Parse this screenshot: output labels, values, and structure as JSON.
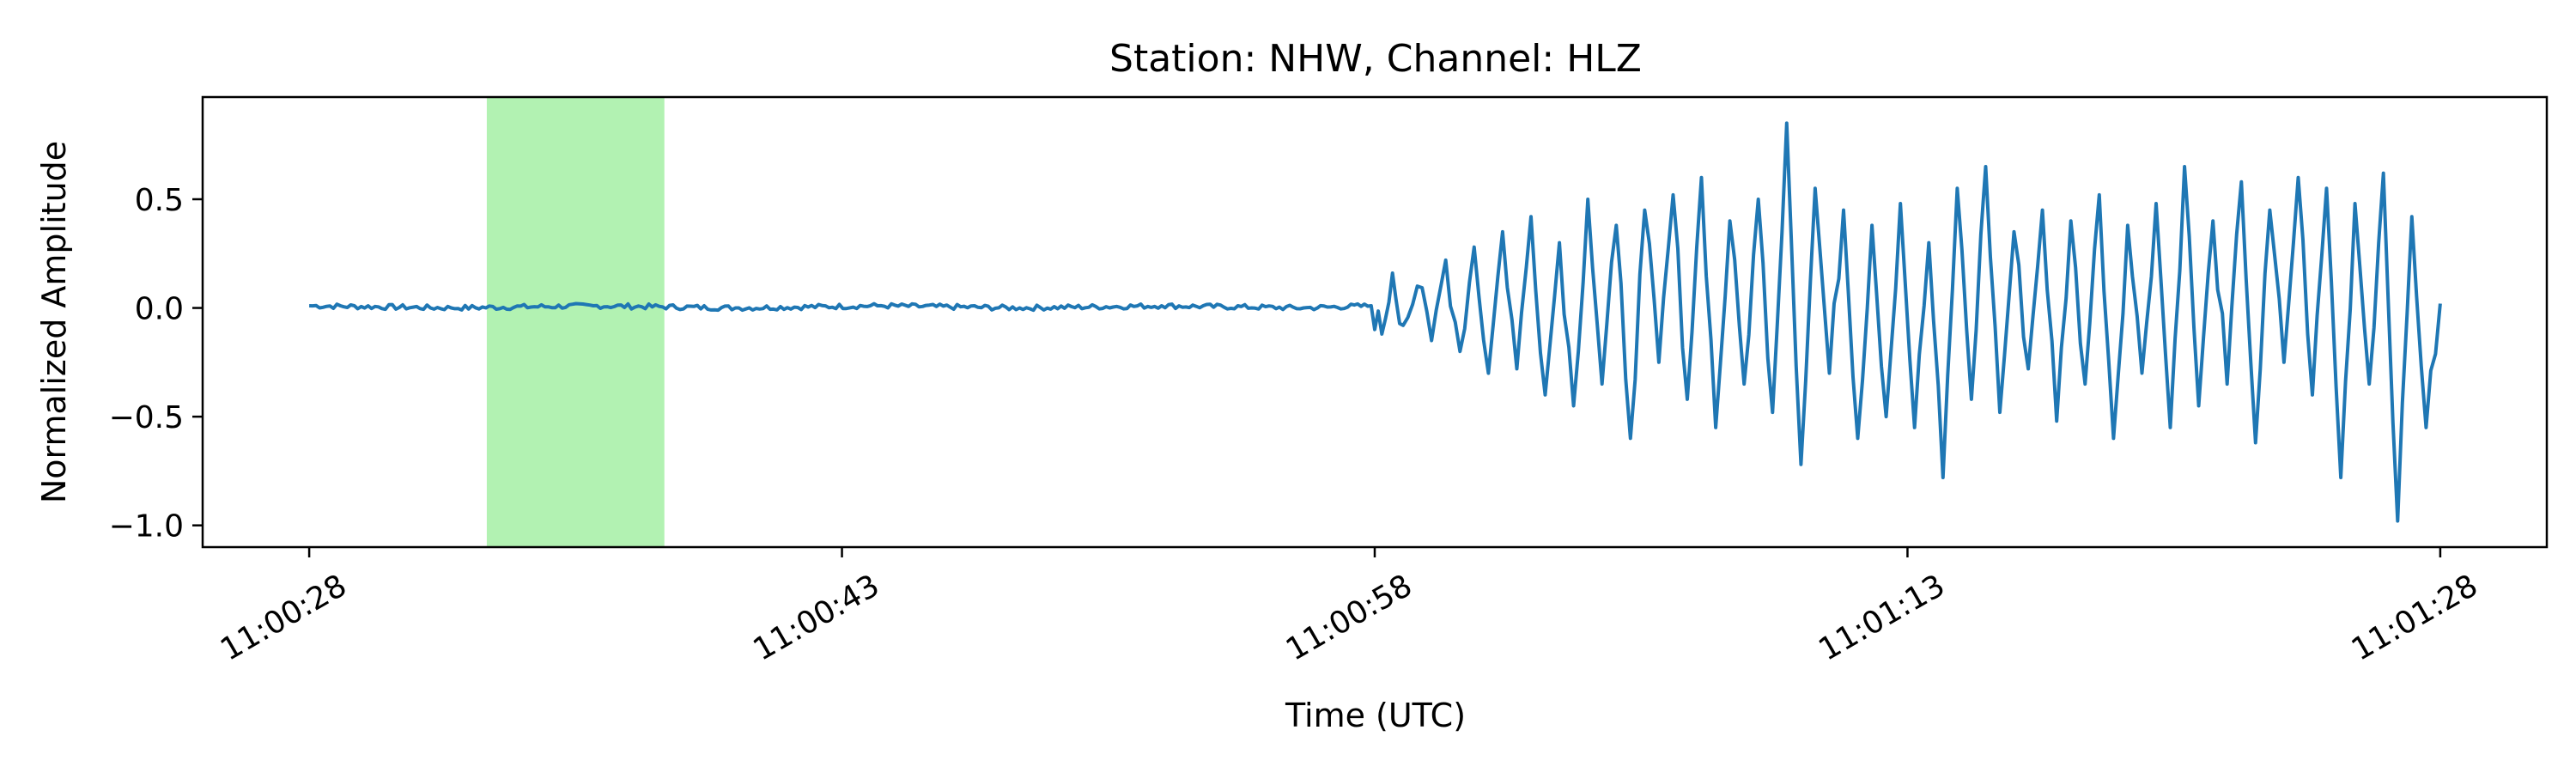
{
  "chart_data": {
    "type": "line",
    "title": "Station: NHW, Channel: HLZ",
    "xlabel": "Time (UTC)",
    "ylabel": "Normalized Amplitude",
    "xlim": [
      "11:00:25",
      "11:01:31"
    ],
    "ylim": [
      -1.1,
      0.97
    ],
    "grid": false,
    "x_ticks": [
      "11:00:28",
      "11:00:43",
      "11:00:58",
      "11:01:13",
      "11:01:28"
    ],
    "y_ticks": [
      {
        "value": 0.5,
        "label": "0.5"
      },
      {
        "value": 0.0,
        "label": "0.0"
      },
      {
        "value": -0.5,
        "label": "−0.5"
      },
      {
        "value": -1.0,
        "label": "−1.0"
      }
    ],
    "highlight_window": {
      "start": "11:00:33",
      "end": "11:00:38",
      "color": "#b2f2b2"
    },
    "series": [
      {
        "color": "#1f77b4",
        "x": [
          "11:00:28",
          "11:00:32",
          "11:00:36",
          "11:00:40",
          "11:00:44",
          "11:00:48",
          "11:00:52",
          "11:00:56",
          "11:00:57.9",
          "11:00:58.2",
          "11:00:58.5",
          "11:00:58.8",
          "11:00:59.2",
          "11:00:59.6",
          "11:01:00",
          "11:01:00.4",
          "11:01:00.8",
          "11:01:01.2",
          "11:01:01.6",
          "11:01:02",
          "11:01:02.4",
          "11:01:02.8",
          "11:01:03.2",
          "11:01:03.6",
          "11:01:04",
          "11:01:04.4",
          "11:01:04.8",
          "11:01:05.2",
          "11:01:05.6",
          "11:01:06",
          "11:01:06.4",
          "11:01:06.8",
          "11:01:07.2",
          "11:01:07.6",
          "11:01:08",
          "11:01:08.4",
          "11:01:08.8",
          "11:01:09.2",
          "11:01:09.6",
          "11:01:10",
          "11:01:10.4",
          "11:01:10.8",
          "11:01:11.2",
          "11:01:11.6",
          "11:01:12",
          "11:01:12.4",
          "11:01:12.8",
          "11:01:13.2",
          "11:01:13.6",
          "11:01:14",
          "11:01:14.4",
          "11:01:14.8",
          "11:01:15.2",
          "11:01:15.6",
          "11:01:16",
          "11:01:16.4",
          "11:01:16.8",
          "11:01:17.2",
          "11:01:17.6",
          "11:01:18",
          "11:01:18.4",
          "11:01:18.8",
          "11:01:19.2",
          "11:01:19.6",
          "11:01:20",
          "11:01:20.4",
          "11:01:20.8",
          "11:01:21.2",
          "11:01:21.6",
          "11:01:22",
          "11:01:22.4",
          "11:01:22.8",
          "11:01:23.2",
          "11:01:23.6",
          "11:01:24",
          "11:01:24.4",
          "11:01:24.8",
          "11:01:25.2",
          "11:01:25.6",
          "11:01:26",
          "11:01:26.4",
          "11:01:26.8",
          "11:01:27.2",
          "11:01:27.6",
          "11:01:28"
        ],
        "y": [
          0.01,
          0.0,
          0.01,
          0.0,
          0.01,
          0.0,
          0.01,
          0.0,
          0.01,
          -0.12,
          0.16,
          -0.08,
          0.1,
          -0.15,
          0.22,
          -0.2,
          0.28,
          -0.3,
          0.35,
          -0.28,
          0.42,
          -0.4,
          0.3,
          -0.45,
          0.5,
          -0.35,
          0.38,
          -0.6,
          0.45,
          -0.25,
          0.52,
          -0.42,
          0.6,
          -0.55,
          0.4,
          -0.35,
          0.5,
          -0.48,
          0.85,
          -0.72,
          0.55,
          -0.3,
          0.45,
          -0.6,
          0.38,
          -0.5,
          0.48,
          -0.55,
          0.3,
          -0.78,
          0.55,
          -0.42,
          0.65,
          -0.48,
          0.35,
          -0.28,
          0.45,
          -0.52,
          0.4,
          -0.35,
          0.52,
          -0.6,
          0.38,
          -0.3,
          0.48,
          -0.55,
          0.65,
          -0.45,
          0.4,
          -0.35,
          0.58,
          -0.62,
          0.45,
          -0.25,
          0.6,
          -0.4,
          0.55,
          -0.78,
          0.48,
          -0.35,
          0.62,
          -0.98,
          0.42,
          -0.55,
          0.02
        ]
      }
    ]
  }
}
